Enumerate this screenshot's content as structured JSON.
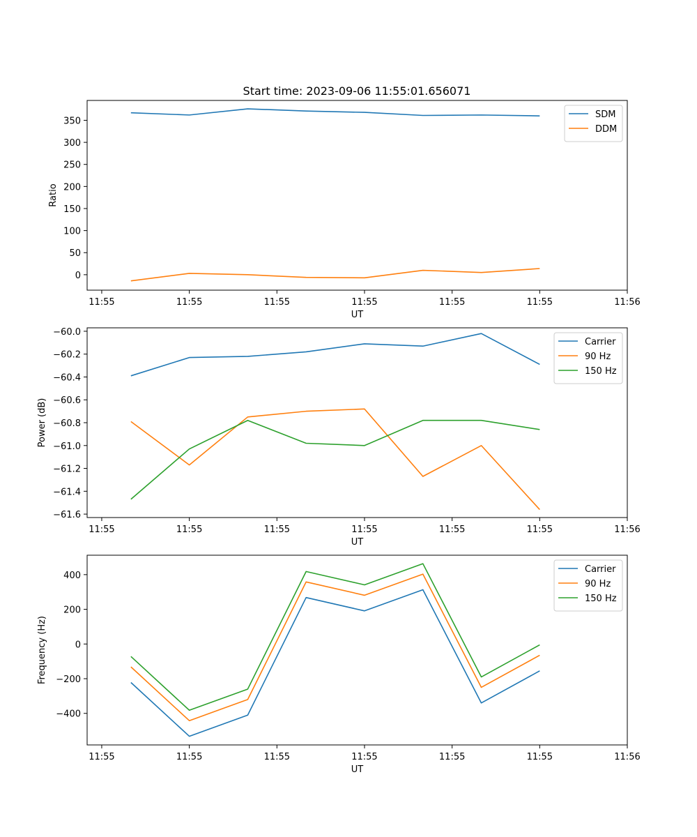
{
  "colors": {
    "blue": "#1f77b4",
    "orange": "#ff7f0e",
    "green": "#2ca02c"
  },
  "chart_data": [
    {
      "id": "ratio",
      "type": "line",
      "title": "Start time: 2023-09-06 11:55:01.656071",
      "xlabel": "UT",
      "ylabel": "Ratio",
      "legend": "top-right",
      "x": [
        0,
        1,
        2,
        3,
        4,
        5,
        6,
        7
      ],
      "xlim": [
        -0.75,
        8.5
      ],
      "xticks": [
        -0.5,
        1,
        2.5,
        4,
        5.5,
        7,
        8.5
      ],
      "xtick_labels": [
        "11:55",
        "11:55",
        "11:55",
        "11:55",
        "11:55",
        "11:55",
        "11:56"
      ],
      "ylim": [
        -35,
        395
      ],
      "yticks": [
        0,
        50,
        100,
        150,
        200,
        250,
        300,
        350
      ],
      "ytick_labels": [
        "0",
        "50",
        "100",
        "150",
        "200",
        "250",
        "300",
        "350"
      ],
      "series": [
        {
          "name": "SDM",
          "color": "#1f77b4",
          "values": [
            367,
            362,
            376,
            371,
            368,
            361,
            362,
            360
          ]
        },
        {
          "name": "DDM",
          "color": "#ff7f0e",
          "values": [
            -14,
            3,
            0,
            -6,
            -7,
            10,
            5,
            14
          ]
        }
      ]
    },
    {
      "id": "power",
      "type": "line",
      "title": "",
      "xlabel": "UT",
      "ylabel": "Power (dB)",
      "legend": "top-right",
      "x": [
        0,
        1,
        2,
        3,
        4,
        5,
        6,
        7
      ],
      "xlim": [
        -0.75,
        8.5
      ],
      "xticks": [
        -0.5,
        1,
        2.5,
        4,
        5.5,
        7,
        8.5
      ],
      "xtick_labels": [
        "11:55",
        "11:55",
        "11:55",
        "11:55",
        "11:55",
        "11:55",
        "11:56"
      ],
      "ylim": [
        -61.63,
        -59.97
      ],
      "yticks": [
        -61.6,
        -61.4,
        -61.2,
        -61.0,
        -60.8,
        -60.6,
        -60.4,
        -60.2,
        -60.0
      ],
      "ytick_labels": [
        "−61.6",
        "−61.4",
        "−61.2",
        "−61.0",
        "−60.8",
        "−60.6",
        "−60.4",
        "−60.2",
        "−60.0"
      ],
      "series": [
        {
          "name": "Carrier",
          "color": "#1f77b4",
          "values": [
            -60.39,
            -60.23,
            -60.22,
            -60.18,
            -60.11,
            -60.13,
            -60.02,
            -60.29
          ]
        },
        {
          "name": "90 Hz",
          "color": "#ff7f0e",
          "values": [
            -60.79,
            -61.17,
            -60.75,
            -60.7,
            -60.68,
            -61.27,
            -61.0,
            -61.56
          ]
        },
        {
          "name": "150 Hz",
          "color": "#2ca02c",
          "values": [
            -61.47,
            -61.03,
            -60.78,
            -60.98,
            -61.0,
            -60.78,
            -60.78,
            -60.86
          ]
        }
      ]
    },
    {
      "id": "frequency",
      "type": "line",
      "title": "",
      "xlabel": "UT",
      "ylabel": "Frequency (Hz)",
      "legend": "top-right",
      "x": [
        0,
        1,
        2,
        3,
        4,
        5,
        6,
        7
      ],
      "xlim": [
        -0.75,
        8.5
      ],
      "xticks": [
        -0.5,
        1,
        2.5,
        4,
        5.5,
        7,
        8.5
      ],
      "xtick_labels": [
        "11:55",
        "11:55",
        "11:55",
        "11:55",
        "11:55",
        "11:55",
        "11:56"
      ],
      "ylim": [
        -582,
        512
      ],
      "yticks": [
        -400,
        -200,
        0,
        200,
        400
      ],
      "ytick_labels": [
        "−400",
        "−200",
        "0",
        "200",
        "400"
      ],
      "series": [
        {
          "name": "Carrier",
          "color": "#1f77b4",
          "values": [
            -222,
            -532,
            -410,
            268,
            191,
            313,
            -340,
            -155
          ]
        },
        {
          "name": "90 Hz",
          "color": "#ff7f0e",
          "values": [
            -132,
            -442,
            -320,
            358,
            281,
            403,
            -250,
            -65
          ]
        },
        {
          "name": "150 Hz",
          "color": "#2ca02c",
          "values": [
            -72,
            -382,
            -260,
            418,
            341,
            463,
            -190,
            -5
          ]
        }
      ]
    }
  ]
}
